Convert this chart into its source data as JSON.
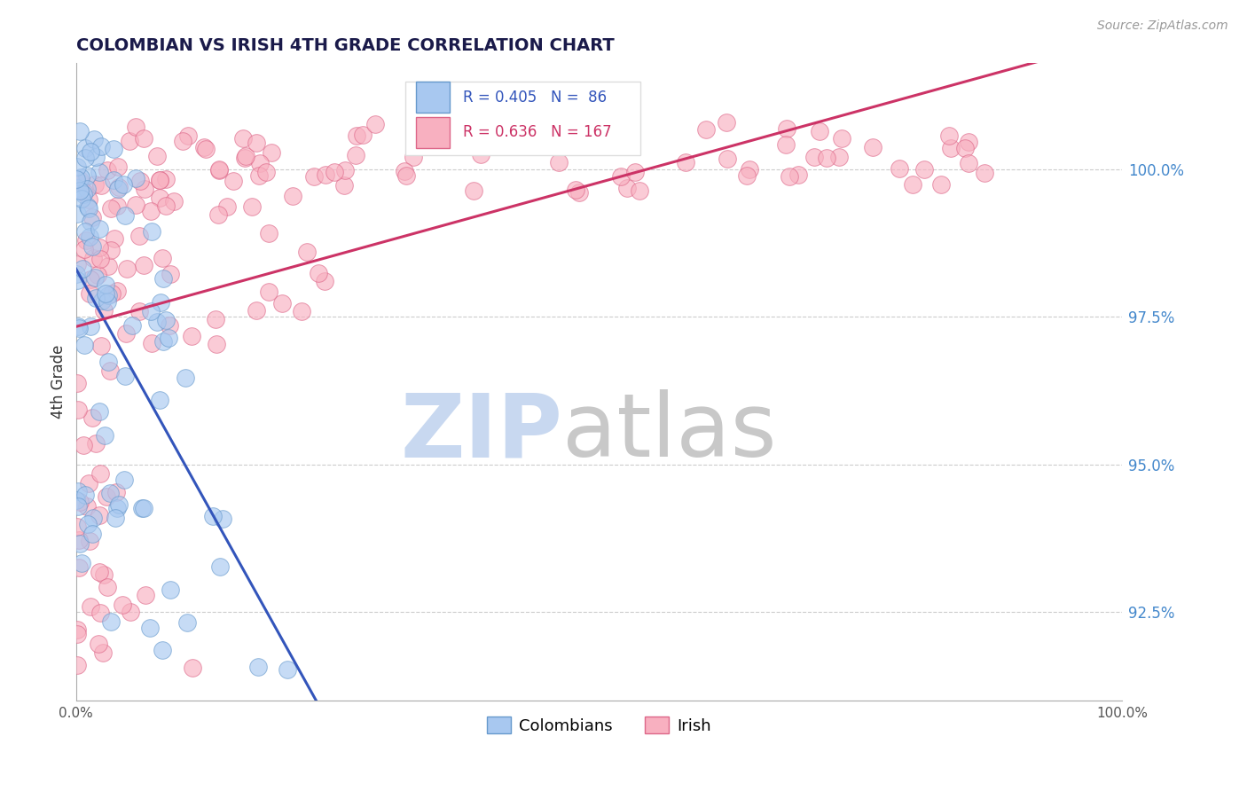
{
  "title": "COLOMBIAN VS IRISH 4TH GRADE CORRELATION CHART",
  "source": "Source: ZipAtlas.com",
  "ylabel": "4th Grade",
  "yticks": [
    92.5,
    95.0,
    97.5,
    100.0
  ],
  "ytick_labels": [
    "92.5%",
    "95.0%",
    "97.5%",
    "100.0%"
  ],
  "xlim": [
    0.0,
    100.0
  ],
  "ylim": [
    91.0,
    101.8
  ],
  "colombian_color": "#a8c8f0",
  "irish_color": "#f8b0c0",
  "colombian_edge_color": "#6699cc",
  "irish_edge_color": "#dd6688",
  "colombian_line_color": "#3355bb",
  "irish_line_color": "#cc3366",
  "R_colombian": 0.405,
  "N_colombian": 86,
  "R_irish": 0.636,
  "N_irish": 167,
  "watermark_zip_color": "#c8d8f0",
  "watermark_atlas_color": "#c8c8c8",
  "background_color": "#ffffff",
  "grid_color": "#cccccc",
  "title_color": "#1a1a4a",
  "legend_box_color": "#dddddd"
}
